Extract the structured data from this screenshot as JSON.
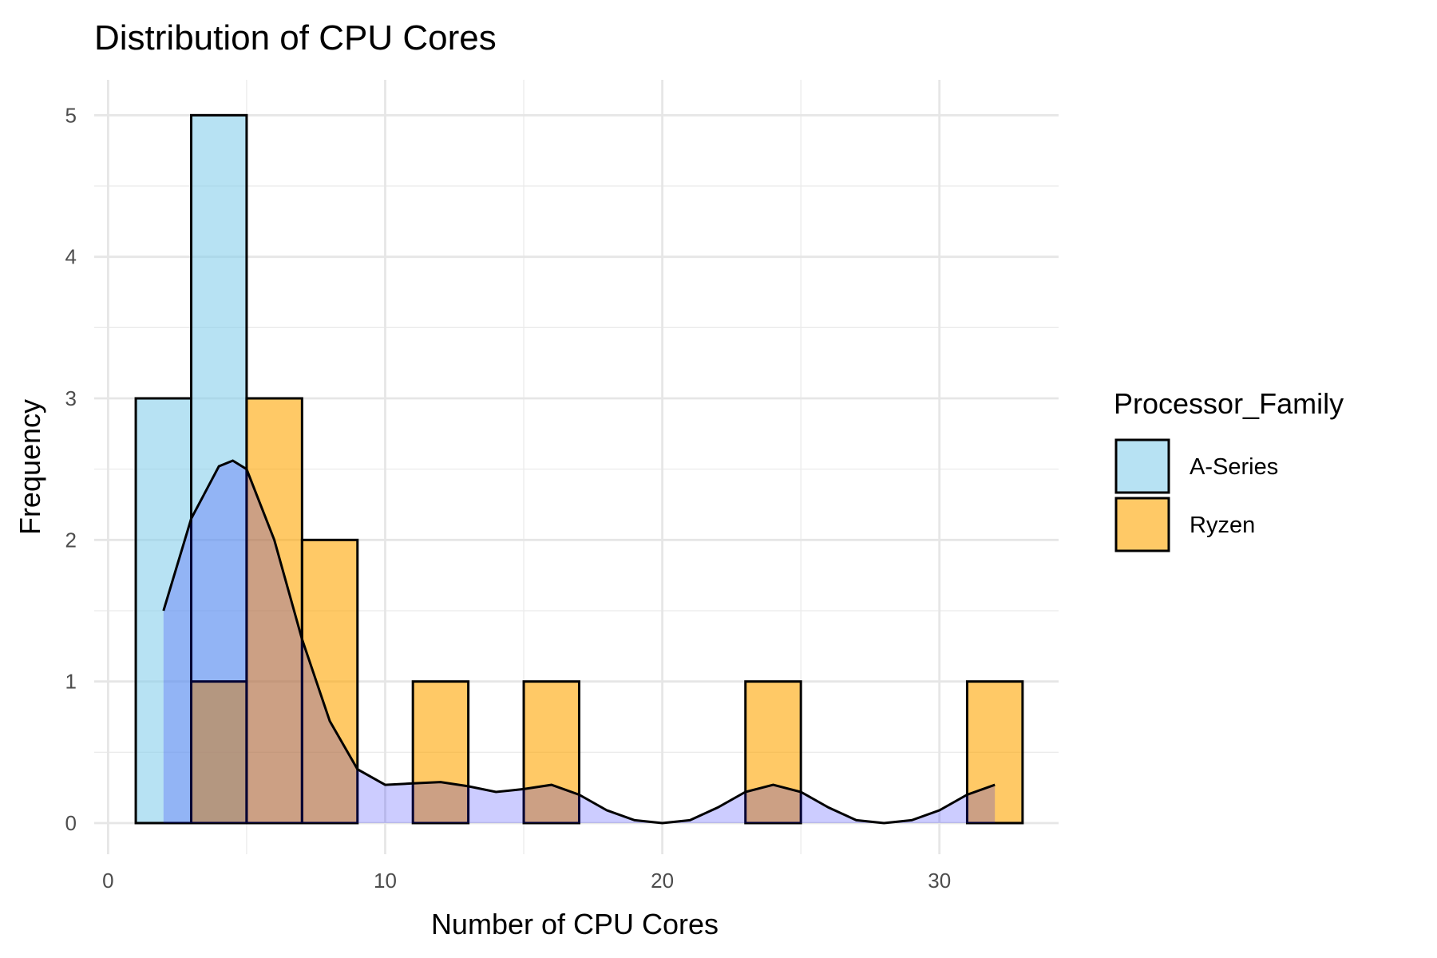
{
  "chart_data": {
    "type": "bar",
    "title": "Distribution of CPU Cores",
    "xlabel": "Number of CPU Cores",
    "ylabel": "Frequency",
    "xlim": [
      -0.5,
      34.3
    ],
    "ylim": [
      -0.22,
      5.25
    ],
    "x_ticks": [
      0,
      10,
      20,
      30
    ],
    "y_ticks": [
      0,
      1,
      2,
      3,
      4,
      5
    ],
    "grid": true,
    "bin_width": 2,
    "legend": {
      "title": "Processor_Family",
      "position": "right",
      "entries": [
        {
          "label": "A-Series",
          "color": "#87CEEB"
        },
        {
          "label": "Ryzen",
          "color": "#FFA500"
        }
      ]
    },
    "series": [
      {
        "name": "A-Series",
        "color": "#87CEEB",
        "bins": [
          {
            "x0": 1,
            "x1": 3,
            "count": 3
          },
          {
            "x0": 3,
            "x1": 5,
            "count": 5
          }
        ]
      },
      {
        "name": "Ryzen",
        "color": "#FFA500",
        "bins": [
          {
            "x0": 3,
            "x1": 5,
            "count": 1
          },
          {
            "x0": 5,
            "x1": 7,
            "count": 3
          },
          {
            "x0": 7,
            "x1": 9,
            "count": 2
          },
          {
            "x0": 11,
            "x1": 13,
            "count": 1
          },
          {
            "x0": 15,
            "x1": 17,
            "count": 1
          },
          {
            "x0": 23,
            "x1": 25,
            "count": 1
          },
          {
            "x0": 31,
            "x1": 33,
            "count": 1
          }
        ]
      }
    ],
    "density": {
      "fill": "#0000FF",
      "line": "#000000",
      "points": [
        [
          2,
          1.5
        ],
        [
          3,
          2.15
        ],
        [
          4,
          2.52
        ],
        [
          4.5,
          2.56
        ],
        [
          5,
          2.5
        ],
        [
          6,
          2.0
        ],
        [
          7,
          1.3
        ],
        [
          8,
          0.72
        ],
        [
          9,
          0.38
        ],
        [
          10,
          0.27
        ],
        [
          11,
          0.28
        ],
        [
          12,
          0.29
        ],
        [
          13,
          0.26
        ],
        [
          14,
          0.22
        ],
        [
          15,
          0.24
        ],
        [
          16,
          0.27
        ],
        [
          17,
          0.2
        ],
        [
          18,
          0.09
        ],
        [
          19,
          0.02
        ],
        [
          20,
          0.0
        ],
        [
          21,
          0.02
        ],
        [
          22,
          0.11
        ],
        [
          23,
          0.22
        ],
        [
          24,
          0.27
        ],
        [
          25,
          0.22
        ],
        [
          26,
          0.11
        ],
        [
          27,
          0.02
        ],
        [
          28,
          0.0
        ],
        [
          29,
          0.02
        ],
        [
          30,
          0.09
        ],
        [
          31,
          0.2
        ],
        [
          32,
          0.27
        ]
      ]
    }
  }
}
